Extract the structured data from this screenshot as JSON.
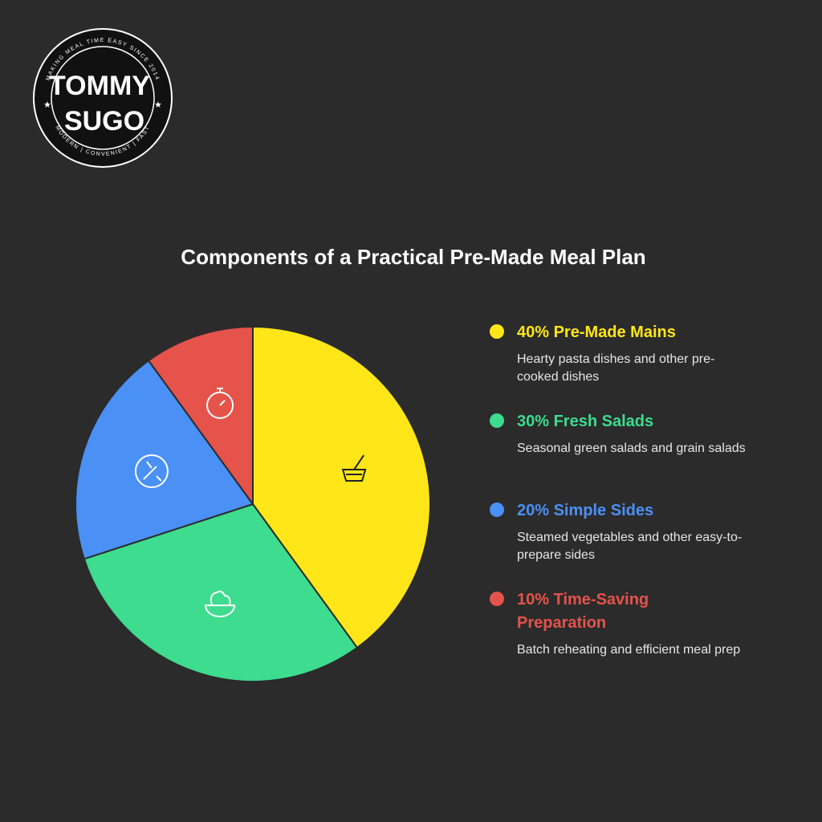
{
  "logo": {
    "name_top": "TOMMY",
    "name_bottom": "SUGO",
    "arc_top": "MAKING MEAL TIME EASY SINCE 2014",
    "arc_bottom": "MODERN | CONVENIENT | FAST"
  },
  "chart_data": {
    "type": "pie",
    "title": "Components of a Practical Pre-Made Meal Plan",
    "categories": [
      "Pre-Made Mains",
      "Fresh Salads",
      "Simple Sides",
      "Time-Saving Preparation"
    ],
    "values": [
      40,
      30,
      20,
      10
    ],
    "value_labels": [
      "40%",
      "30%",
      "20%",
      "10%"
    ],
    "colors": [
      "#FFE619",
      "#3DDC8E",
      "#4A90F5",
      "#E5534B"
    ],
    "descriptions": [
      "Hearty pasta dishes and other pre-cooked dishes",
      "Seasonal green salads and grain salads",
      "Steamed vegetables and other easy-to-prepare sides",
      "Batch reheating and efficient meal prep"
    ]
  }
}
